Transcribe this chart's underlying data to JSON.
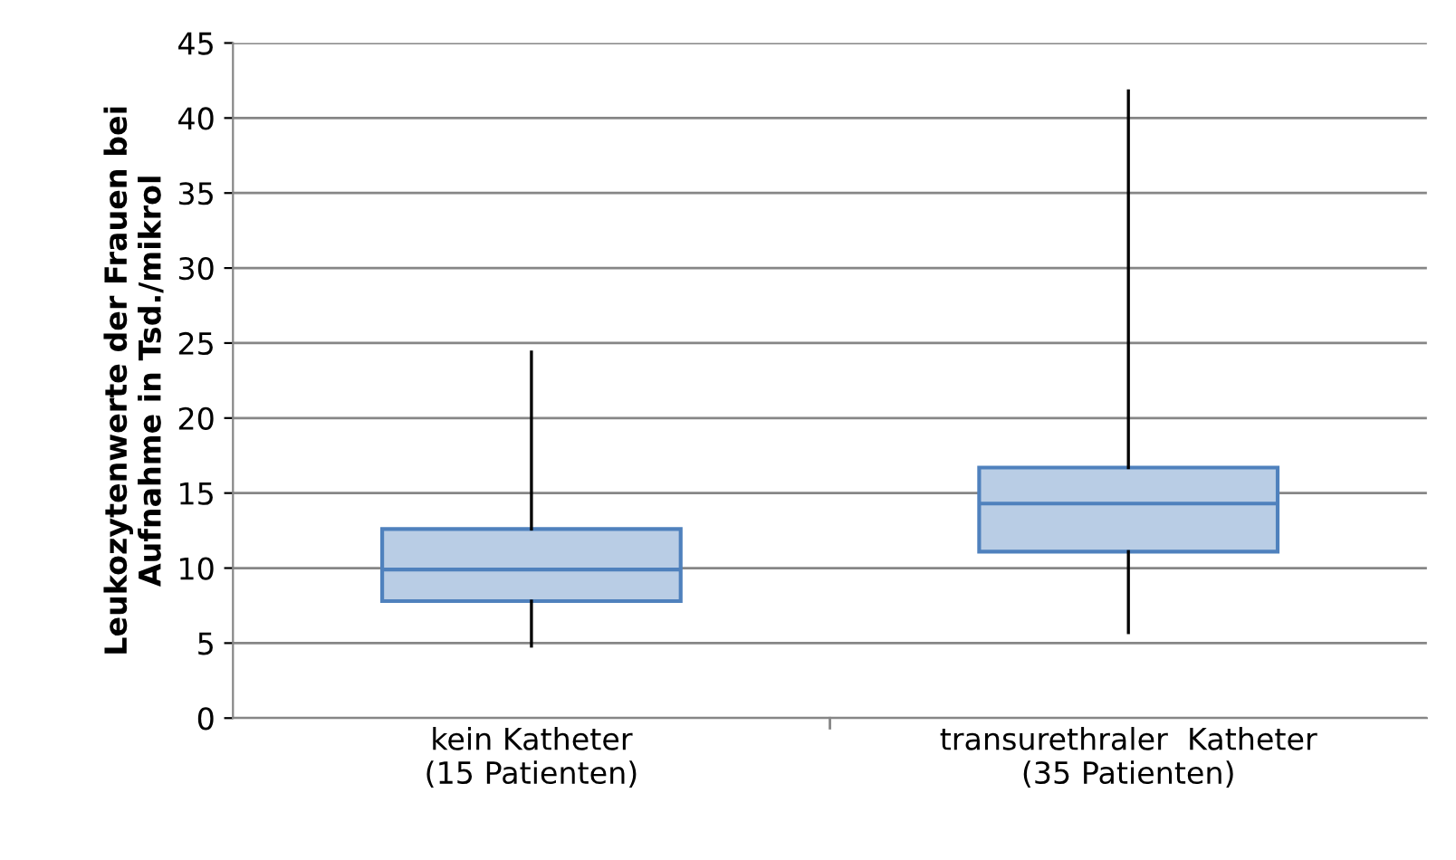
{
  "chart_data": {
    "type": "box",
    "ylabel": "Leukozytenwerte der Frauen bei\nAufnahme in Tsd./mikrol",
    "categories": [
      "kein Katheter\n(15 Patienten)",
      "transurethraler  Katheter\n(35 Patienten)"
    ],
    "boxes": [
      {
        "low": 4.8,
        "q1": 7.8,
        "median": 9.9,
        "q3": 12.6,
        "high": 24.4
      },
      {
        "low": 5.7,
        "q1": 11.1,
        "median": 14.3,
        "q3": 16.7,
        "high": 41.8
      }
    ],
    "color": "#b9cde5",
    "ylim": [
      0,
      45
    ],
    "yticks": [
      0,
      5,
      10,
      15,
      20,
      25,
      30,
      35,
      40,
      45
    ],
    "grid": "y"
  }
}
